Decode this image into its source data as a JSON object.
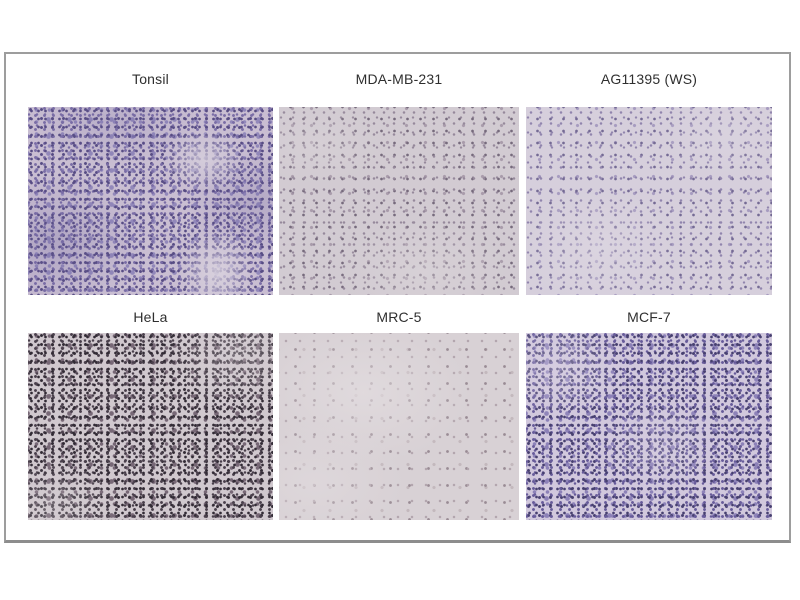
{
  "figure": {
    "type": "immunohistochemistry-staining-grid",
    "rows": 2,
    "cols": 3,
    "frame": {
      "border": "#9d9d9d",
      "labelcolor": "#2f2f2f"
    },
    "page_background": "#ffffff",
    "panels": [
      {
        "id": "tonsil",
        "label": "Tonsil",
        "row": 1,
        "col": 1,
        "stain_density": "dense",
        "colors": {
          "bg": "#c9bed2",
          "d1": "#7a6da6",
          "d2": "#574c84",
          "d3": "#9288ba"
        }
      },
      {
        "id": "mda-mb-231",
        "label": "MDA-MB-231",
        "row": 1,
        "col": 2,
        "stain_density": "medium",
        "colors": {
          "bg": "#d2cbd2",
          "d1": "#96899b",
          "d2": "#766a7c",
          "d3": "#a99cab"
        }
      },
      {
        "id": "ag11395-ws",
        "label": "AG11395 (WS)",
        "row": 1,
        "col": 3,
        "stain_density": "medium",
        "colors": {
          "bg": "#d6cfdc",
          "d1": "#9185ad",
          "d2": "#746a94",
          "d3": "#a79cc0"
        }
      },
      {
        "id": "hela",
        "label": "HeLa",
        "row": 2,
        "col": 1,
        "stain_density": "dense",
        "colors": {
          "bg": "#d0c8ce",
          "d1": "#4a404c",
          "d2": "#322b35",
          "d3": "#776876"
        }
      },
      {
        "id": "mrc-5",
        "label": "MRC-5",
        "row": 2,
        "col": 2,
        "stain_density": "sparse",
        "colors": {
          "bg": "#d8d1d5",
          "d1": "#b2a5ad",
          "d2": "#998b94",
          "d3": "#c3b8bd"
        }
      },
      {
        "id": "mcf-7",
        "label": "MCF-7",
        "row": 2,
        "col": 3,
        "stain_density": "dense",
        "colors": {
          "bg": "#d1c8dd",
          "d1": "#675b9a",
          "d2": "#474070",
          "d3": "#8d82b8"
        }
      }
    ]
  }
}
